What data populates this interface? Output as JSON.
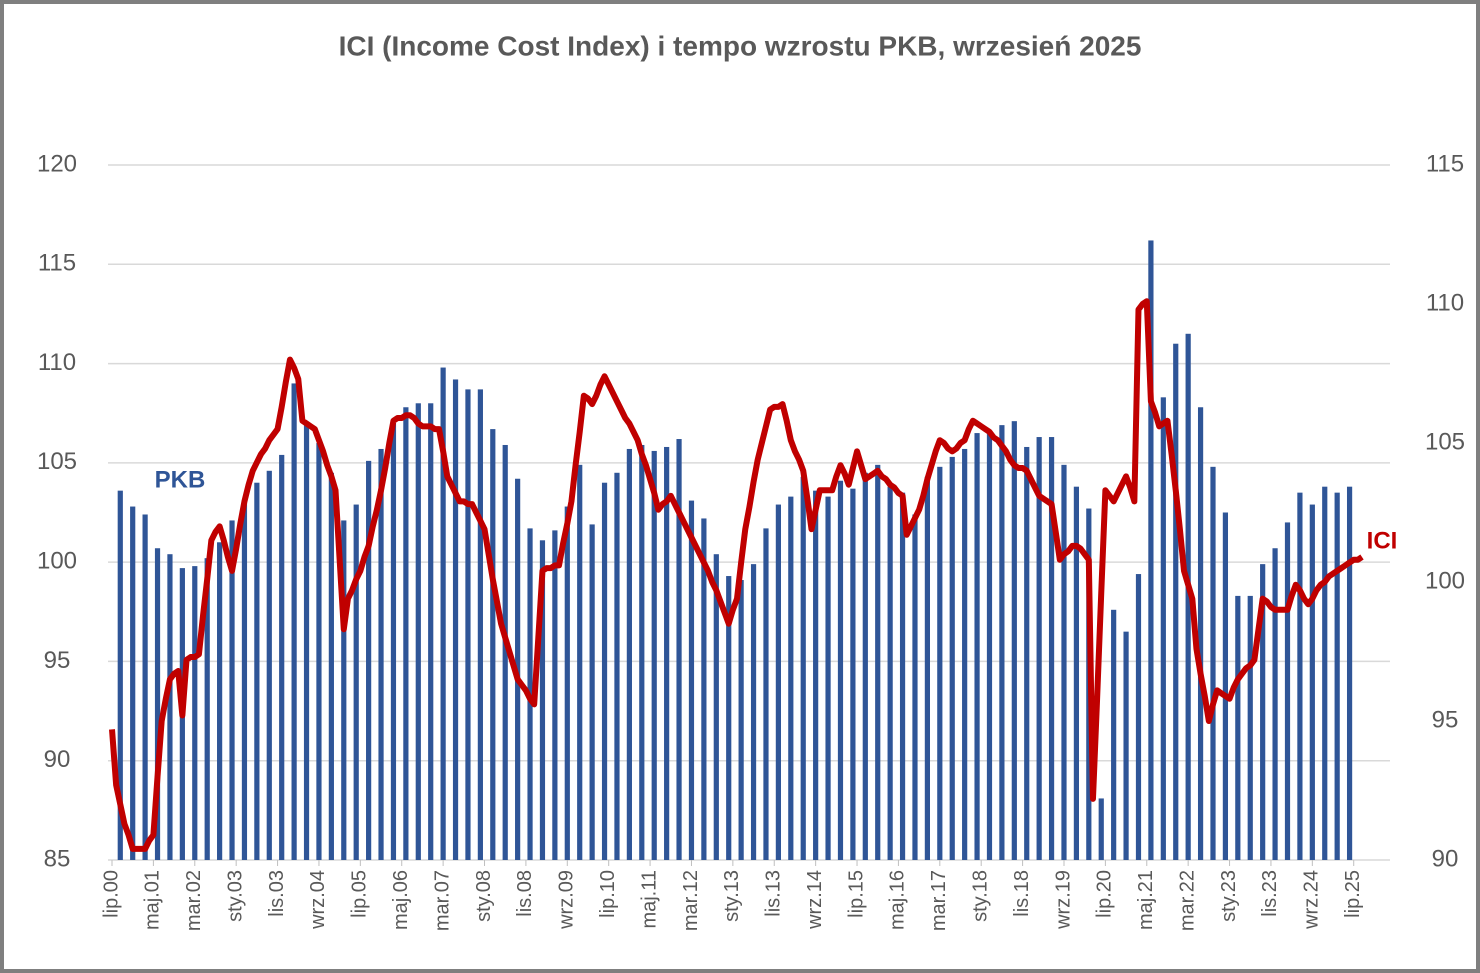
{
  "chart_data": {
    "type": "bar",
    "title": "ICI (Income Cost Index) i tempo wzrostu PKB, wrzesień 2025",
    "categories": [
      "lip.00",
      null,
      null,
      null,
      null,
      null,
      null,
      null,
      null,
      null,
      "maj.01",
      null,
      null,
      null,
      null,
      null,
      null,
      null,
      null,
      null,
      "mar.02",
      null,
      null,
      null,
      null,
      null,
      null,
      null,
      null,
      null,
      "sty.03",
      null,
      null,
      null,
      null,
      null,
      null,
      null,
      null,
      null,
      "lis.03",
      null,
      null,
      null,
      null,
      null,
      null,
      null,
      null,
      null,
      "wrz.04",
      null,
      null,
      null,
      null,
      null,
      null,
      null,
      null,
      null,
      "lip.05",
      null,
      null,
      null,
      null,
      null,
      null,
      null,
      null,
      null,
      "maj.06",
      null,
      null,
      null,
      null,
      null,
      null,
      null,
      null,
      null,
      "mar.07",
      null,
      null,
      null,
      null,
      null,
      null,
      null,
      null,
      null,
      "sty.08",
      null,
      null,
      null,
      null,
      null,
      null,
      null,
      null,
      null,
      "lis.08",
      null,
      null,
      null,
      null,
      null,
      null,
      null,
      null,
      null,
      "wrz.09",
      null,
      null,
      null,
      null,
      null,
      null,
      null,
      null,
      null,
      "lip.10",
      null,
      null,
      null,
      null,
      null,
      null,
      null,
      null,
      null,
      "maj.11",
      null,
      null,
      null,
      null,
      null,
      null,
      null,
      null,
      null,
      "mar.12",
      null,
      null,
      null,
      null,
      null,
      null,
      null,
      null,
      null,
      "sty.13",
      null,
      null,
      null,
      null,
      null,
      null,
      null,
      null,
      null,
      "lis.13",
      null,
      null,
      null,
      null,
      null,
      null,
      null,
      null,
      null,
      "wrz.14",
      null,
      null,
      null,
      null,
      null,
      null,
      null,
      null,
      null,
      "lip.15",
      null,
      null,
      null,
      null,
      null,
      null,
      null,
      null,
      null,
      "maj.16",
      null,
      null,
      null,
      null,
      null,
      null,
      null,
      null,
      null,
      "mar.17",
      null,
      null,
      null,
      null,
      null,
      null,
      null,
      null,
      null,
      "sty.18",
      null,
      null,
      null,
      null,
      null,
      null,
      null,
      null,
      null,
      "lis.18",
      null,
      null,
      null,
      null,
      null,
      null,
      null,
      null,
      null,
      "wrz.19",
      null,
      null,
      null,
      null,
      null,
      null,
      null,
      null,
      null,
      "lip.20",
      null,
      null,
      null,
      null,
      null,
      null,
      null,
      null,
      null,
      "maj.21",
      null,
      null,
      null,
      null,
      null,
      null,
      null,
      null,
      null,
      "mar.22",
      null,
      null,
      null,
      null,
      null,
      null,
      null,
      null,
      null,
      "sty.23",
      null,
      null,
      null,
      null,
      null,
      null,
      null,
      null,
      null,
      "lis.23",
      null,
      null,
      null,
      null,
      null,
      null,
      null,
      null,
      null,
      "wrz.24",
      null,
      null,
      null,
      null,
      null,
      null,
      null,
      null,
      null,
      "lip.25",
      null,
      null
    ],
    "series": [
      {
        "name": "PKB",
        "type": "bar",
        "color": "#2f5597",
        "values": [
          null,
          null,
          103.6,
          null,
          null,
          102.8,
          null,
          null,
          102.4,
          null,
          null,
          100.7,
          null,
          null,
          100.4,
          null,
          null,
          99.7,
          null,
          null,
          99.8,
          null,
          null,
          100.2,
          null,
          null,
          101.0,
          null,
          null,
          102.1,
          null,
          null,
          103.0,
          null,
          null,
          104.0,
          null,
          null,
          104.6,
          null,
          null,
          105.4,
          null,
          null,
          109.0,
          null,
          null,
          107.0,
          null,
          null,
          106.0,
          null,
          null,
          104.5,
          null,
          null,
          102.1,
          null,
          null,
          102.9,
          null,
          null,
          105.1,
          null,
          null,
          105.7,
          null,
          null,
          107.0,
          null,
          null,
          107.8,
          null,
          null,
          108.0,
          null,
          null,
          108.0,
          null,
          null,
          109.8,
          null,
          null,
          109.2,
          null,
          null,
          108.7,
          null,
          null,
          108.7,
          null,
          null,
          106.7,
          null,
          null,
          105.9,
          null,
          null,
          104.2,
          null,
          null,
          101.7,
          null,
          null,
          101.1,
          null,
          null,
          101.6,
          null,
          null,
          102.8,
          null,
          null,
          104.9,
          null,
          null,
          101.9,
          null,
          null,
          104.0,
          null,
          null,
          104.5,
          null,
          null,
          105.7,
          null,
          null,
          105.9,
          null,
          null,
          105.6,
          null,
          null,
          105.8,
          null,
          null,
          106.2,
          null,
          null,
          103.1,
          null,
          null,
          102.2,
          null,
          null,
          100.4,
          null,
          null,
          99.3,
          null,
          null,
          99.1,
          null,
          null,
          99.9,
          null,
          null,
          101.7,
          null,
          null,
          102.9,
          null,
          null,
          103.3,
          null,
          null,
          104.3,
          null,
          null,
          103.6,
          null,
          null,
          103.3,
          null,
          null,
          104.1,
          null,
          null,
          103.7,
          null,
          null,
          104.5,
          null,
          null,
          104.9,
          null,
          null,
          103.8,
          null,
          null,
          103.5,
          null,
          null,
          102.4,
          null,
          null,
          104.3,
          null,
          null,
          104.8,
          null,
          null,
          105.3,
          null,
          null,
          105.7,
          null,
          null,
          106.5,
          null,
          null,
          106.5,
          null,
          null,
          106.9,
          null,
          null,
          107.1,
          null,
          null,
          105.8,
          null,
          null,
          106.3,
          null,
          null,
          106.3,
          null,
          null,
          104.9,
          null,
          null,
          103.8,
          null,
          null,
          102.7,
          null,
          null,
          88.1,
          null,
          null,
          97.6,
          null,
          null,
          96.5,
          null,
          null,
          99.4,
          null,
          null,
          116.2,
          null,
          null,
          108.3,
          null,
          null,
          111.0,
          null,
          null,
          111.5,
          null,
          null,
          107.8,
          null,
          null,
          104.8,
          null,
          null,
          102.5,
          null,
          null,
          98.3,
          null,
          null,
          98.3,
          null,
          null,
          99.9,
          null,
          null,
          100.7,
          null,
          null,
          102.0,
          null,
          null,
          103.5,
          null,
          null,
          102.9,
          null,
          null,
          103.8,
          null,
          null,
          103.5,
          null,
          null,
          103.8,
          null,
          null,
          null
        ]
      },
      {
        "name": "ICI",
        "type": "line",
        "axis": "y2",
        "color": "#c00000",
        "values": [
          94.7,
          92.7,
          92.0,
          91.3,
          90.9,
          90.4,
          90.4,
          90.4,
          90.4,
          90.7,
          90.9,
          93.0,
          95.0,
          95.8,
          96.5,
          96.7,
          96.8,
          95.2,
          97.2,
          97.3,
          97.3,
          97.4,
          98.8,
          100.1,
          101.5,
          101.8,
          102.0,
          101.5,
          100.9,
          100.4,
          101.2,
          102.1,
          102.9,
          103.5,
          104.0,
          104.3,
          104.6,
          104.8,
          105.1,
          105.3,
          105.5,
          106.3,
          107.2,
          108.0,
          107.7,
          107.3,
          105.8,
          105.7,
          105.6,
          105.5,
          105.1,
          104.7,
          104.2,
          103.8,
          103.3,
          100.8,
          98.3,
          99.4,
          99.7,
          100.1,
          100.4,
          100.9,
          101.3,
          102.0,
          102.6,
          103.3,
          104.1,
          105.0,
          105.8,
          105.9,
          105.9,
          106.0,
          106.0,
          105.9,
          105.7,
          105.6,
          105.6,
          105.6,
          105.5,
          105.5,
          104.7,
          103.8,
          103.5,
          103.2,
          102.9,
          102.9,
          102.8,
          102.8,
          102.5,
          102.2,
          101.9,
          101.0,
          100.1,
          99.3,
          98.5,
          98.0,
          97.5,
          97.0,
          96.5,
          96.3,
          96.1,
          95.8,
          95.6,
          98.0,
          100.4,
          100.5,
          100.5,
          100.6,
          100.6,
          101.4,
          102.1,
          102.9,
          104.2,
          105.4,
          106.7,
          106.6,
          106.4,
          106.7,
          107.1,
          107.4,
          107.1,
          106.8,
          106.5,
          106.2,
          105.9,
          105.7,
          105.4,
          105.1,
          104.6,
          104.2,
          103.7,
          103.2,
          102.6,
          102.8,
          102.9,
          103.1,
          102.8,
          102.5,
          102.2,
          101.9,
          101.6,
          101.3,
          101.0,
          100.7,
          100.4,
          100.0,
          99.7,
          99.3,
          98.9,
          98.5,
          99.0,
          99.4,
          100.7,
          101.9,
          102.7,
          103.6,
          104.4,
          105.0,
          105.6,
          106.2,
          106.3,
          106.3,
          106.4,
          105.8,
          105.1,
          104.7,
          104.4,
          104.0,
          103.0,
          101.9,
          102.6,
          103.3,
          103.3,
          103.3,
          103.3,
          103.8,
          104.2,
          103.9,
          103.5,
          104.1,
          104.7,
          104.2,
          103.7,
          103.8,
          103.9,
          104.0,
          103.8,
          103.7,
          103.5,
          103.4,
          103.2,
          103.1,
          101.7,
          102.0,
          102.3,
          102.6,
          103.1,
          103.7,
          104.2,
          104.7,
          105.1,
          105.0,
          104.8,
          104.7,
          104.8,
          105.0,
          105.1,
          105.5,
          105.8,
          105.7,
          105.6,
          105.5,
          105.4,
          105.2,
          105.1,
          104.9,
          104.7,
          104.4,
          104.2,
          104.1,
          104.1,
          104.0,
          103.7,
          103.4,
          103.1,
          103.0,
          102.9,
          102.8,
          101.8,
          100.8,
          101.0,
          101.1,
          101.3,
          101.3,
          101.2,
          101.0,
          100.8,
          92.2,
          95.8,
          99.6,
          103.3,
          103.1,
          102.9,
          103.2,
          103.5,
          103.8,
          103.4,
          102.9,
          109.8,
          110.0,
          110.1,
          106.5,
          106.1,
          105.6,
          105.7,
          105.8,
          104.6,
          103.3,
          101.9,
          100.4,
          99.9,
          99.4,
          97.6,
          96.7,
          95.9,
          95.0,
          95.6,
          96.1,
          96.0,
          95.9,
          95.8,
          96.2,
          96.5,
          96.7,
          96.9,
          97.0,
          97.2,
          98.3,
          99.4,
          99.3,
          99.1,
          99.0,
          99.0,
          99.0,
          99.0,
          99.5,
          99.9,
          99.7,
          99.4,
          99.2,
          99.4,
          99.7,
          99.9,
          100.0,
          100.2,
          100.3,
          100.4,
          100.5,
          100.6,
          100.7,
          100.8,
          100.8,
          100.9
        ]
      }
    ],
    "ylim": [
      85,
      120
    ],
    "yticks": [
      85,
      90,
      95,
      100,
      105,
      110,
      115,
      120
    ],
    "y2lim": [
      90,
      115
    ],
    "y2ticks": [
      90,
      95,
      100,
      105,
      110,
      115
    ],
    "grid": true
  }
}
